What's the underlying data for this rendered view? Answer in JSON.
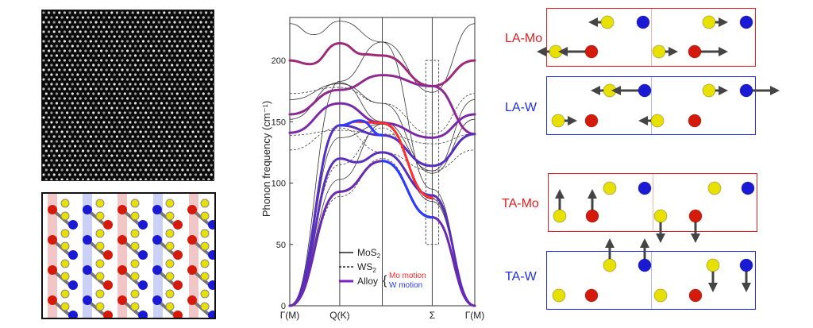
{
  "chart_data": {
    "type": "line",
    "title": "",
    "ylabel": "Phonon frequency (cm⁻¹)",
    "xlabel": "",
    "ylim": [
      0,
      235
    ],
    "yticks": [
      0,
      50,
      100,
      150,
      200
    ],
    "x_points": [
      {
        "label": "Γ(M)",
        "pos": 0.0
      },
      {
        "label": "Q(K)",
        "pos": 0.27
      },
      {
        "label": "",
        "pos": 0.5
      },
      {
        "label": "Σ",
        "pos": 0.77
      },
      {
        "label": "Γ(M)",
        "pos": 1.0
      }
    ],
    "legend": {
      "placement": "bottom-center",
      "entries": [
        {
          "label": "MoS",
          "sub": "2",
          "style": "solid"
        },
        {
          "label": "WS",
          "sub": "2",
          "style": "dashed"
        },
        {
          "label": "Alloy",
          "style": "alloy"
        }
      ],
      "alloy_brace": [
        {
          "label": "Mo motion",
          "color": "#ff2a2a"
        },
        {
          "label": "W motion",
          "color": "#2a3cff"
        }
      ]
    },
    "highlight_box": {
      "x_range": [
        0.735,
        0.805
      ],
      "y_range": [
        50,
        200
      ]
    },
    "series": [
      {
        "name": "MoS2",
        "style": "solid",
        "color": "#333333",
        "bands": [
          {
            "x": [
              0,
              0.13,
              0.27,
              0.5,
              0.77,
              1
            ],
            "y": [
              230,
              221,
              232,
              215,
              174,
              230
            ]
          },
          {
            "x": [
              0,
              0.27,
              0.5,
              0.77,
              1
            ],
            "y": [
              152,
              182,
              150,
              110,
              168
            ]
          },
          {
            "x": [
              0,
              0.27,
              0.5,
              0.77,
              1
            ],
            "y": [
              168,
              181,
              165,
              108,
              152
            ]
          },
          {
            "x": [
              0,
              0.27,
              0.5,
              0.77,
              1
            ],
            "y": [
              0,
              183,
              215,
              95,
              0
            ]
          },
          {
            "x": [
              0,
              0.27,
              0.5,
              0.77,
              1
            ],
            "y": [
              0,
              137,
              148,
              87,
              0
            ]
          },
          {
            "x": [
              0,
              0.27,
              0.5,
              0.77,
              1
            ],
            "y": [
              0,
              103,
              148,
              85,
              0
            ]
          }
        ]
      },
      {
        "name": "WS2",
        "style": "dashed",
        "color": "#444444",
        "bands": [
          {
            "x": [
              0,
              0.27,
              0.5,
              0.77,
              1
            ],
            "y": [
              173,
              178,
              165,
              140,
              173
            ]
          },
          {
            "x": [
              0,
              0.27,
              0.5,
              0.77,
              1
            ],
            "y": [
              139,
              143,
              140,
              132,
              140
            ]
          },
          {
            "x": [
              0,
              0.27,
              0.5,
              0.77,
              1
            ],
            "y": [
              127,
              145,
              125,
              110,
              127
            ]
          },
          {
            "x": [
              0,
              0.27,
              0.5,
              0.77,
              1
            ],
            "y": [
              0,
              115,
              145,
              88,
              0
            ]
          },
          {
            "x": [
              0,
              0.27,
              0.5,
              0.77,
              1
            ],
            "y": [
              0,
              89,
              120,
              73,
              0
            ]
          }
        ]
      },
      {
        "name": "Alloy",
        "style": "thick",
        "bands": [
          {
            "x": [
              0,
              0.11,
              0.27,
              0.4,
              0.5,
              0.77,
              1
            ],
            "y": [
              200,
              197,
              214,
              205,
              204,
              179,
              200
            ],
            "color": "#9b2a78"
          },
          {
            "x": [
              0,
              0.27,
              0.5,
              0.77,
              1
            ],
            "y": [
              156,
              176,
              188,
              179,
              140
            ],
            "color": "#8d2a8f"
          },
          {
            "x": [
              0,
              0.27,
              0.5,
              0.77,
              1
            ],
            "y": [
              141,
              165,
              149,
              137,
              156
            ],
            "color": "#7a2aa6"
          },
          {
            "x": [
              0,
              0.27,
              0.5,
              0.77,
              1
            ],
            "y": [
              0,
              147,
              139,
              114,
              140
            ],
            "color": "#5530c0"
          },
          {
            "x": [
              0,
              0.27,
              0.36,
              0.5,
              0.77,
              1
            ],
            "y": [
              0,
              120,
              117,
              125,
              90,
              0
            ],
            "color": "#5a2fb8"
          },
          {
            "x": [
              0,
              0.27,
              0.5,
              0.77,
              1
            ],
            "y": [
              0,
              93,
              118,
              72,
              0
            ],
            "color": "#6a2ab0"
          },
          {
            "x": [
              0.27,
              0.36,
              0.5,
              0.77
            ],
            "y": [
              147,
              150,
              149,
              88
            ],
            "color": "#ff3030"
          },
          {
            "x": [
              0.5,
              0.77
            ],
            "y": [
              118,
              72
            ],
            "color": "#2a3cff"
          },
          {
            "x": [
              0.27,
              0.38,
              0.5
            ],
            "y": [
              147,
              151,
              139
            ],
            "color": "#2a3cff"
          }
        ]
      }
    ]
  },
  "images": {
    "stem": {
      "alt": "STEM image of alloy lattice"
    },
    "lattice": {
      "alt": "Atomic structure model of MoS2/WS2 alloy"
    }
  },
  "modes": [
    {
      "label": "LA-Mo",
      "color": "#e02020"
    },
    {
      "label": "LA-W",
      "color": "#2030e0"
    },
    {
      "label": "TA-Mo",
      "color": "#e02020"
    },
    {
      "label": "TA-W",
      "color": "#2030e0"
    }
  ],
  "colors": {
    "mo": "#d41a0a",
    "w": "#1a1ad4",
    "s": "#e8e000",
    "arrow": "#444444"
  }
}
